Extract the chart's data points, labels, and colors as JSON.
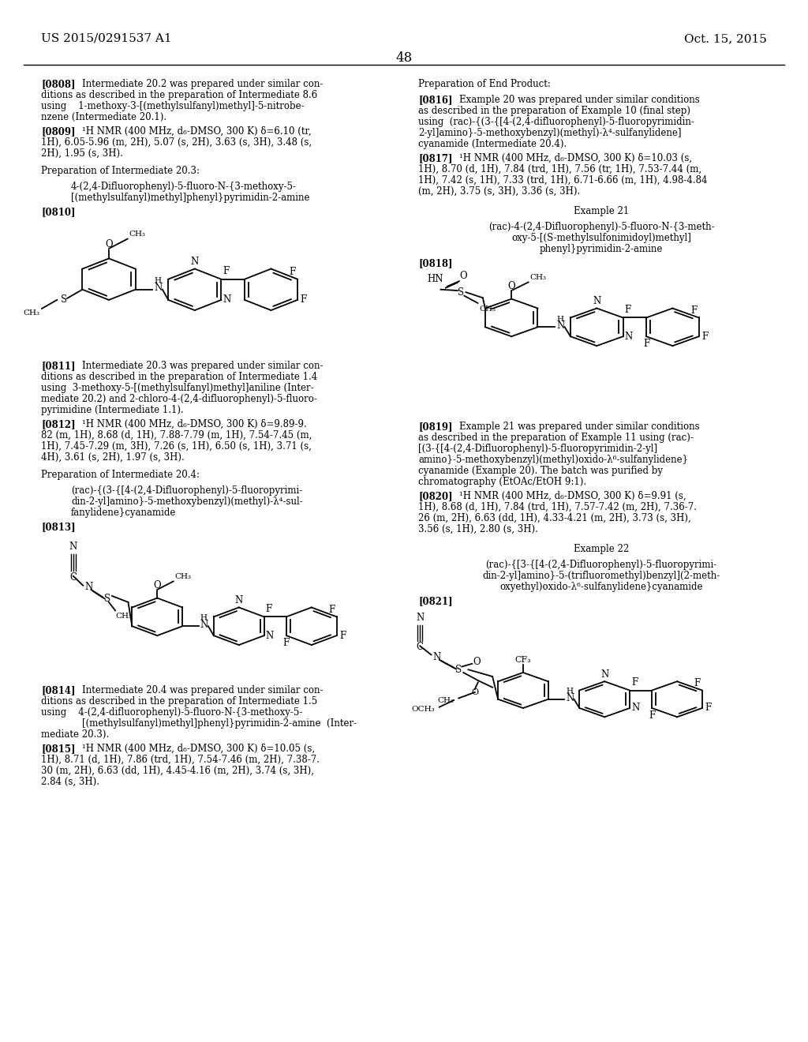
{
  "page_header_left": "US 2015/0291537 A1",
  "page_header_right": "Oct. 15, 2015",
  "page_number": "48",
  "background_color": "#ffffff"
}
